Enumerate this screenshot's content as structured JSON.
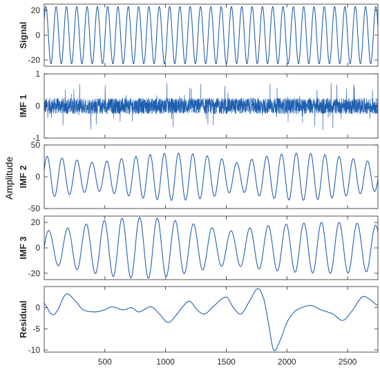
{
  "figure": {
    "ylabel_global": "Amplitude",
    "colors": {
      "trace": "#1f5fb0",
      "axes": "#262626",
      "background": "#ffffff"
    }
  },
  "chart_data": {
    "type": "line",
    "title": "",
    "xlabel": "",
    "ylabel": "Amplitude",
    "xlim": [
      0,
      2750
    ],
    "x_ticks": [
      500,
      1000,
      1500,
      2000,
      2500
    ],
    "x_tick_labels": [
      "500",
      "1000",
      "1500",
      "2000",
      "2500"
    ],
    "grid": false,
    "panels": [
      {
        "name": "Signal",
        "label": "Signal",
        "ylim": [
          -25,
          25
        ],
        "y_ticks": [
          -20,
          0,
          20
        ],
        "y_tick_labels": [
          "-20",
          "0",
          "20"
        ],
        "kind": "sinusoid",
        "period": 85,
        "amplitude": 23
      },
      {
        "name": "IMF 1",
        "label": "IMF 1",
        "ylim": [
          -1,
          1
        ],
        "y_ticks": [
          -1,
          0,
          1
        ],
        "y_tick_labels": [
          "-1",
          "0",
          "1"
        ],
        "kind": "noise",
        "typical_amplitude": 0.25,
        "peak_amplitude": 0.75
      },
      {
        "name": "IMF 2",
        "label": "IMF 2",
        "ylim": [
          -50,
          50
        ],
        "y_ticks": [
          -50,
          0,
          50
        ],
        "y_tick_labels": [
          "-50",
          "0",
          "50"
        ],
        "kind": "oscillation",
        "approx_period": 120,
        "peak_amplitude": 40
      },
      {
        "name": "IMF 3",
        "label": "IMF 3",
        "ylim": [
          -25,
          25
        ],
        "y_ticks": [
          -20,
          0,
          20
        ],
        "y_tick_labels": [
          "-20",
          "0",
          "20"
        ],
        "kind": "oscillation",
        "approx_period": 150,
        "peak_amplitude": 24
      },
      {
        "name": "Residual",
        "label": "Residual",
        "ylim": [
          -10.5,
          5
        ],
        "y_ticks": [
          -10,
          -5,
          0
        ],
        "y_tick_labels": [
          "-10",
          "-5",
          "0"
        ],
        "kind": "smooth",
        "points": [
          [
            0,
            1
          ],
          [
            60,
            -1.5
          ],
          [
            100,
            -1
          ],
          [
            180,
            3.2
          ],
          [
            260,
            1.5
          ],
          [
            320,
            -0.5
          ],
          [
            420,
            -1
          ],
          [
            500,
            -0.5
          ],
          [
            560,
            0.2
          ],
          [
            650,
            -0.5
          ],
          [
            720,
            0
          ],
          [
            780,
            -1
          ],
          [
            880,
            0.2
          ],
          [
            950,
            -1.5
          ],
          [
            1020,
            -3.5
          ],
          [
            1080,
            -2
          ],
          [
            1150,
            0.5
          ],
          [
            1200,
            1.5
          ],
          [
            1260,
            -0.5
          ],
          [
            1320,
            -1.5
          ],
          [
            1400,
            0.5
          ],
          [
            1500,
            2.5
          ],
          [
            1560,
            0
          ],
          [
            1620,
            -1.5
          ],
          [
            1680,
            1
          ],
          [
            1760,
            4.5
          ],
          [
            1810,
            2
          ],
          [
            1850,
            -4
          ],
          [
            1890,
            -10
          ],
          [
            1940,
            -8
          ],
          [
            2000,
            -3.5
          ],
          [
            2060,
            -1
          ],
          [
            2120,
            0
          ],
          [
            2200,
            0.5
          ],
          [
            2280,
            -0.5
          ],
          [
            2380,
            -1.5
          ],
          [
            2460,
            -3
          ],
          [
            2530,
            -1
          ],
          [
            2620,
            2.5
          ],
          [
            2680,
            2
          ],
          [
            2750,
            0.5
          ]
        ]
      }
    ]
  }
}
